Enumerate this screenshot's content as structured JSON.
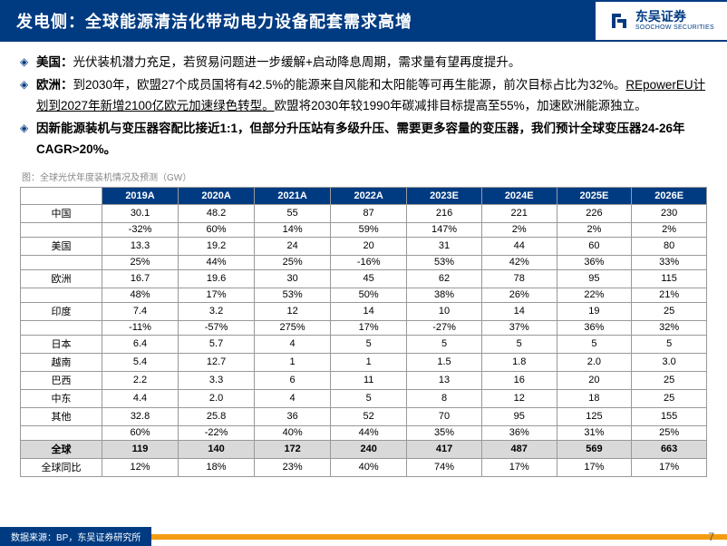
{
  "header": {
    "title": "发电侧：全球能源清洁化带动电力设备配套需求高增",
    "logo_cn": "东吴证券",
    "logo_en": "SOOCHOW SECURITIES",
    "logo_color": "#003b82"
  },
  "bullets": [
    {
      "label": "美国：",
      "text": "光伏装机潜力充足，若贸易问题进一步缓解+启动降息周期，需求量有望再度提升。"
    },
    {
      "label": "欧洲：",
      "text_a": "到2030年，欧盟27个成员国将有42.5%的能源来自风能和太阳能等可再生能源，前次目标占比为32%。",
      "text_u": "REpowerEU计划到2027年新增2100亿欧元加速绿色转型。",
      "text_b": "欧盟将2030年较1990年碳减排目标提高至55%，加速欧洲能源独立。"
    },
    {
      "label": "",
      "text": "因新能源装机与变压器容配比接近1:1，但部分升压站有多级升压、需要更多容量的变压器，我们预计全球变压器24-26年CAGR>20%。"
    }
  ],
  "chart": {
    "title": "图：全球光伏年度装机情况及预测（GW）",
    "columns": [
      "2019A",
      "2020A",
      "2021A",
      "2022A",
      "2023E",
      "2024E",
      "2025E",
      "2026E"
    ],
    "rows": [
      {
        "name": "中国",
        "v": [
          "30.1",
          "48.2",
          "55",
          "87",
          "216",
          "221",
          "226",
          "230"
        ],
        "p": [
          "-32%",
          "60%",
          "14%",
          "59%",
          "147%",
          "2%",
          "2%",
          "2%"
        ]
      },
      {
        "name": "美国",
        "v": [
          "13.3",
          "19.2",
          "24",
          "20",
          "31",
          "44",
          "60",
          "80"
        ],
        "p": [
          "25%",
          "44%",
          "25%",
          "-16%",
          "53%",
          "42%",
          "36%",
          "33%"
        ]
      },
      {
        "name": "欧洲",
        "v": [
          "16.7",
          "19.6",
          "30",
          "45",
          "62",
          "78",
          "95",
          "115"
        ],
        "p": [
          "48%",
          "17%",
          "53%",
          "50%",
          "38%",
          "26%",
          "22%",
          "21%"
        ]
      },
      {
        "name": "印度",
        "v": [
          "7.4",
          "3.2",
          "12",
          "14",
          "10",
          "14",
          "19",
          "25"
        ],
        "p": [
          "-11%",
          "-57%",
          "275%",
          "17%",
          "-27%",
          "37%",
          "36%",
          "32%"
        ]
      },
      {
        "name": "日本",
        "v": [
          "6.4",
          "5.7",
          "4",
          "5",
          "5",
          "5",
          "5",
          "5"
        ],
        "p": null
      },
      {
        "name": "越南",
        "v": [
          "5.4",
          "12.7",
          "1",
          "1",
          "1.5",
          "1.8",
          "2.0",
          "3.0"
        ],
        "p": null
      },
      {
        "name": "巴西",
        "v": [
          "2.2",
          "3.3",
          "6",
          "11",
          "13",
          "16",
          "20",
          "25"
        ],
        "p": null
      },
      {
        "name": "中东",
        "v": [
          "4.4",
          "2.0",
          "4",
          "5",
          "8",
          "12",
          "18",
          "25"
        ],
        "p": null
      },
      {
        "name": "其他",
        "v": [
          "32.8",
          "25.8",
          "36",
          "52",
          "70",
          "95",
          "125",
          "155"
        ],
        "p": [
          "60%",
          "-22%",
          "40%",
          "44%",
          "35%",
          "36%",
          "31%",
          "25%"
        ]
      }
    ],
    "total": {
      "name": "全球",
      "v": [
        "119",
        "140",
        "172",
        "240",
        "417",
        "487",
        "569",
        "663"
      ]
    },
    "total_yoy": {
      "name": "全球同比",
      "v": [
        "12%",
        "18%",
        "23%",
        "40%",
        "74%",
        "17%",
        "17%",
        "17%"
      ]
    },
    "header_bg": "#003b82",
    "total_bg": "#d9d9d9",
    "border": "#999999"
  },
  "footer": {
    "source": "数据来源：BP，东吴证券研究所",
    "page": "7",
    "orange": "#f39c12"
  }
}
